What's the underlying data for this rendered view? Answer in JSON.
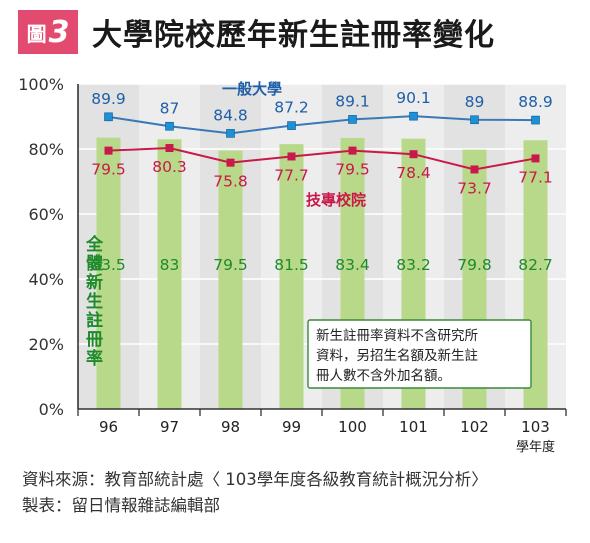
{
  "figure": {
    "badge_prefix": "圖",
    "badge_number": "3",
    "title": "大學院校歷年新生註冊率變化"
  },
  "note": {
    "lines": [
      "新生註冊率資料不含研究所",
      "資料，另招生名額及新生註",
      "冊人數不含外加名額。"
    ]
  },
  "footer": {
    "source": "資料來源：教育部統計處〈 103學年度各級教育統計概況分析〉",
    "maker": "製表：留日情報雜誌編輯部"
  },
  "chart_data": {
    "type": "bar",
    "categories": [
      "96",
      "97",
      "98",
      "99",
      "100",
      "101",
      "102",
      "103"
    ],
    "xunit": "學年度",
    "ylim": [
      0,
      100
    ],
    "yticks": [
      "0%",
      "20%",
      "40%",
      "60%",
      "80%",
      "100%"
    ],
    "grid": true,
    "series": [
      {
        "name": "全體新生註冊率",
        "kind": "bar",
        "color": "#b8d98a",
        "label_color": "#1e8a2a",
        "values": [
          83.5,
          83,
          79.5,
          81.5,
          83.4,
          83.2,
          79.8,
          82.7
        ]
      },
      {
        "name": "一般大學",
        "kind": "line",
        "color": "#3a78b8",
        "marker_color": "#1e90d6",
        "label_color": "#1f5fa8",
        "values": [
          89.9,
          87,
          84.8,
          87.2,
          89.1,
          90.1,
          89,
          88.9
        ]
      },
      {
        "name": "技專校院",
        "kind": "line",
        "color": "#c8194a",
        "marker_color": "#c8194a",
        "label_color": "#c8194a",
        "values": [
          79.5,
          80.3,
          75.8,
          77.7,
          79.5,
          78.4,
          73.7,
          77.1
        ]
      }
    ]
  }
}
